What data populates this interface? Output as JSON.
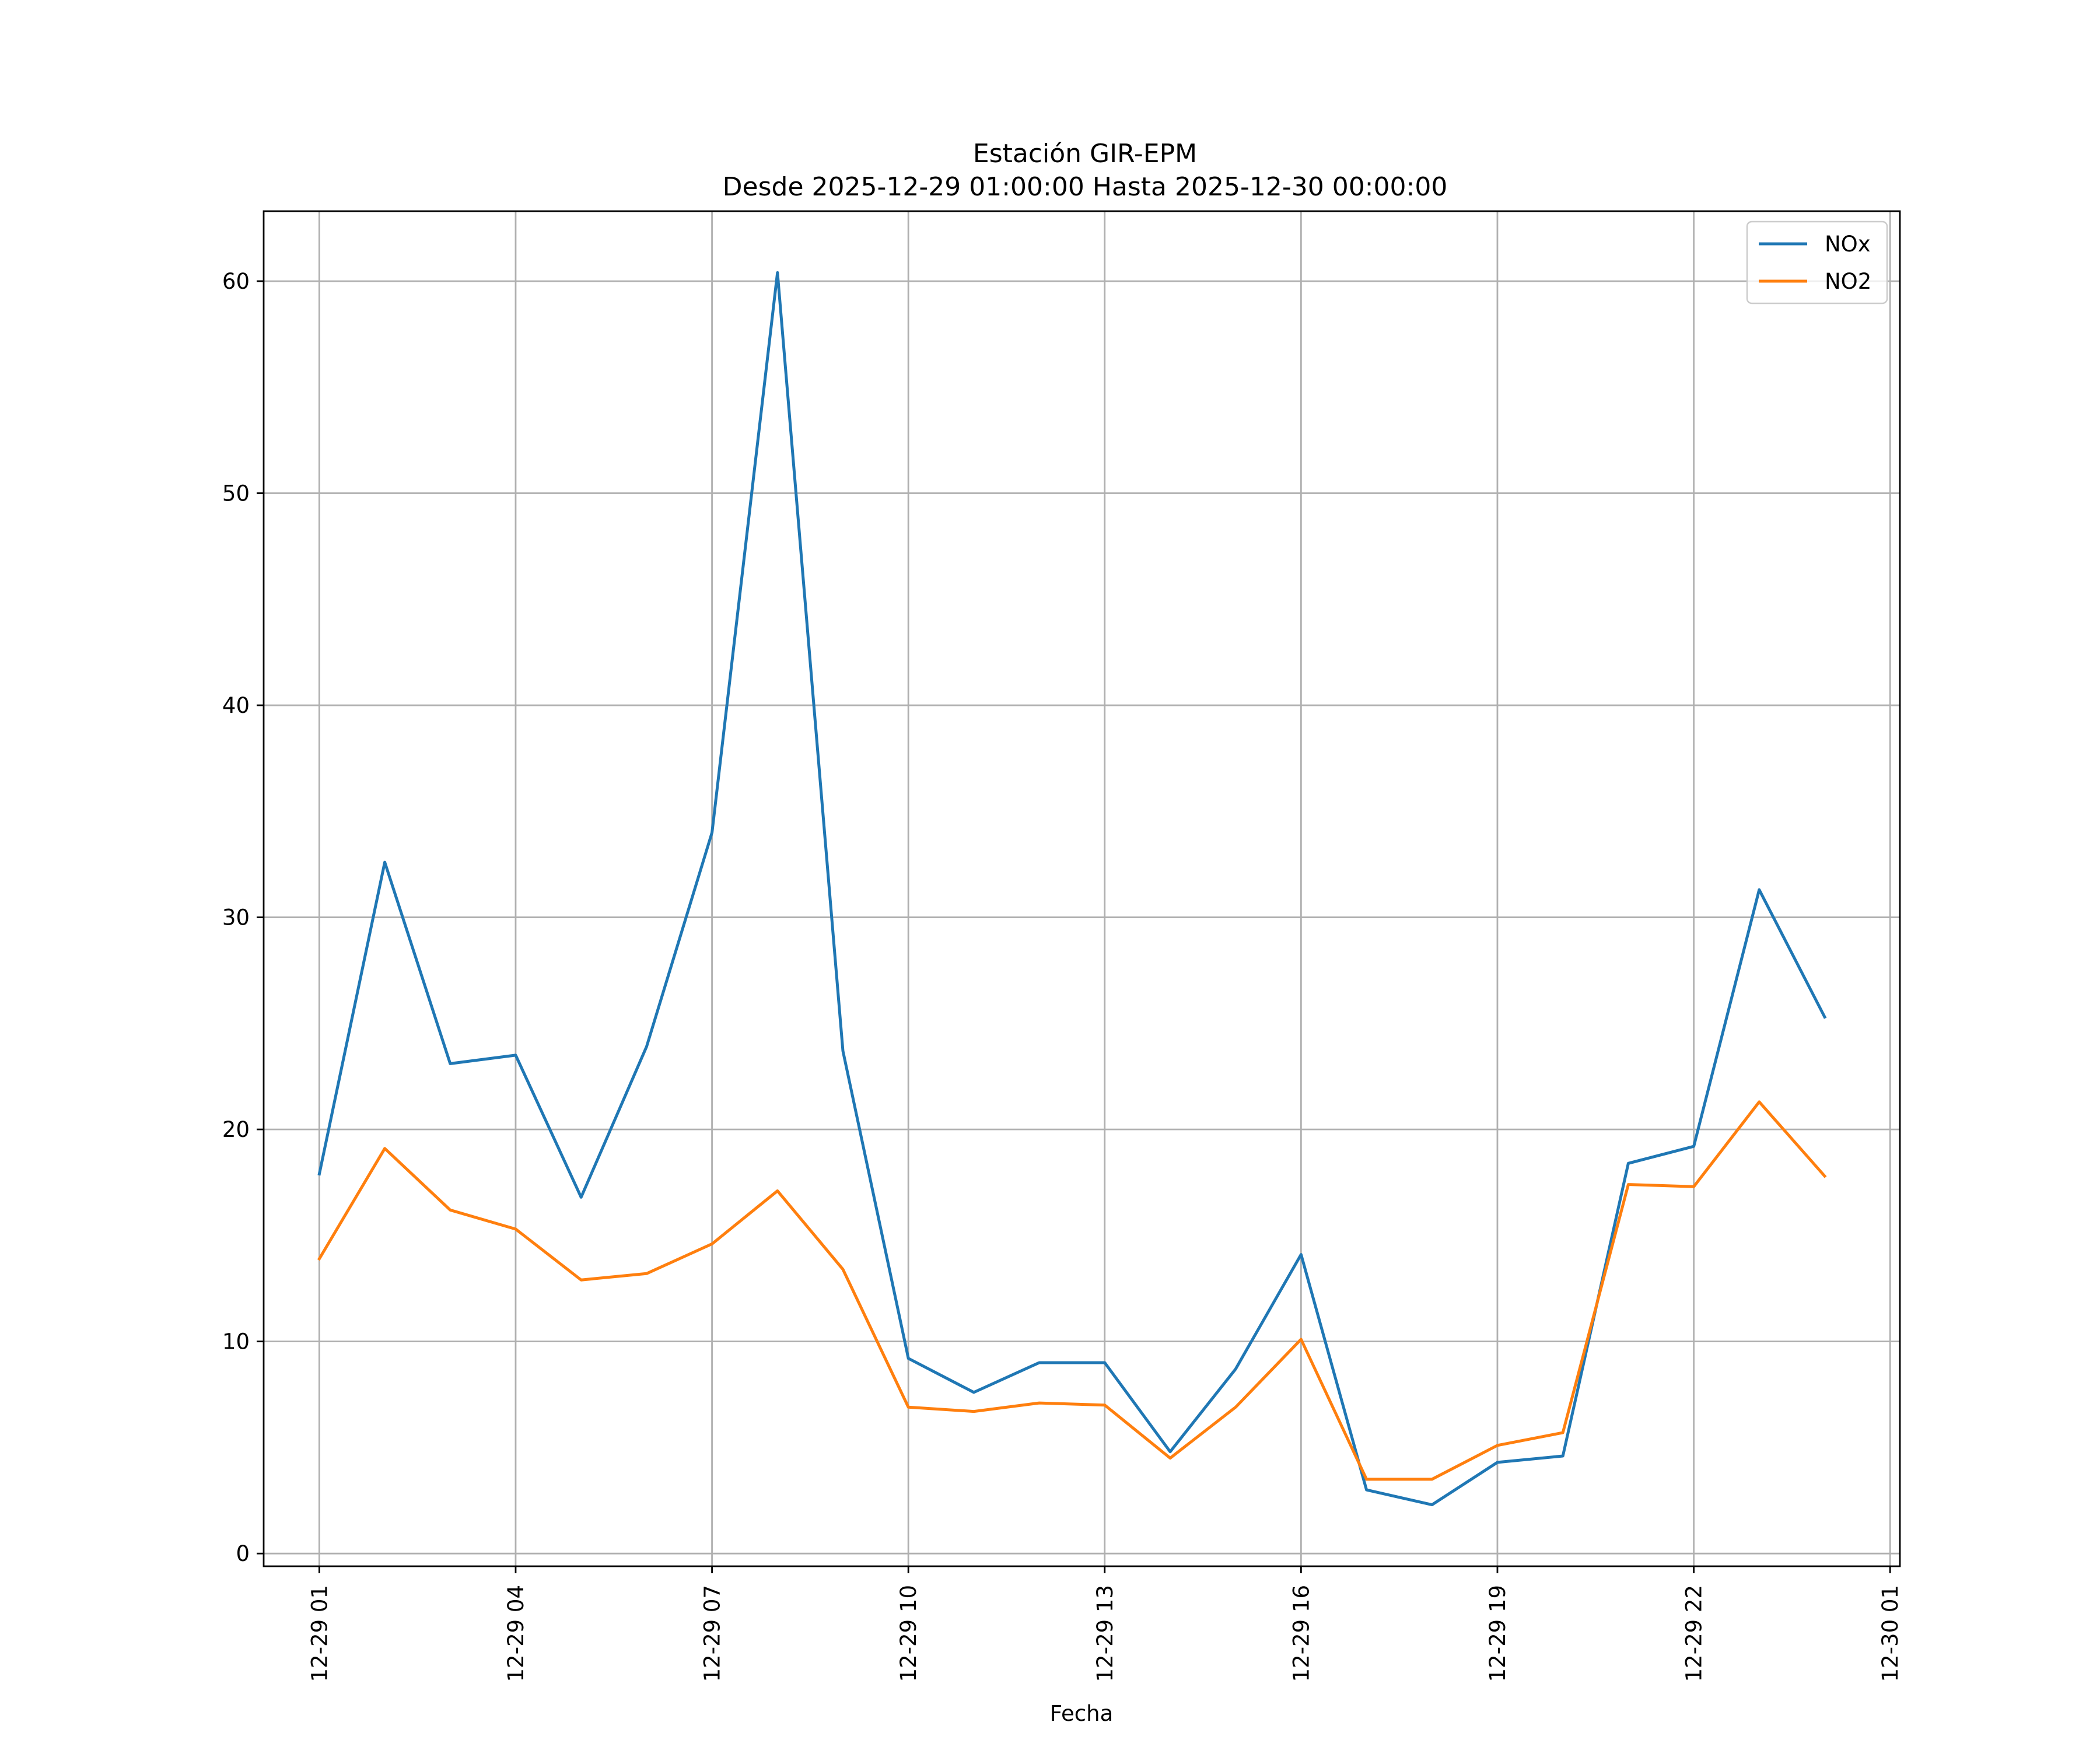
{
  "chart_data": {
    "type": "line",
    "title": "Estación GIR-EPM",
    "subtitle": "Desde 2025-12-29 01:00:00 Hasta 2025-12-30 00:00:00",
    "xlabel": "Fecha",
    "ylabel": "",
    "grid": true,
    "legend_position": "top-right",
    "x_hours": [
      1,
      2,
      3,
      4,
      5,
      6,
      7,
      8,
      9,
      10,
      11,
      12,
      13,
      14,
      15,
      16,
      17,
      18,
      19,
      20,
      21,
      22,
      23,
      24
    ],
    "xlim": [
      0.15,
      25.15
    ],
    "ylim": [
      -0.6,
      63.3
    ],
    "x_ticks": [
      {
        "hour": 1,
        "label": "12-29 01"
      },
      {
        "hour": 4,
        "label": "12-29 04"
      },
      {
        "hour": 7,
        "label": "12-29 07"
      },
      {
        "hour": 10,
        "label": "12-29 10"
      },
      {
        "hour": 13,
        "label": "12-29 13"
      },
      {
        "hour": 16,
        "label": "12-29 16"
      },
      {
        "hour": 19,
        "label": "12-29 19"
      },
      {
        "hour": 22,
        "label": "12-29 22"
      },
      {
        "hour": 25,
        "label": "12-30 01"
      }
    ],
    "y_ticks": [
      0,
      10,
      20,
      30,
      40,
      50,
      60
    ],
    "series": [
      {
        "name": "NOx",
        "color": "#1f77b4",
        "values": [
          17.9,
          32.6,
          23.1,
          23.5,
          16.8,
          23.9,
          34.0,
          60.4,
          23.7,
          9.2,
          7.6,
          9.0,
          9.0,
          4.8,
          8.7,
          14.1,
          3.0,
          2.3,
          4.3,
          4.6,
          18.4,
          19.2,
          31.3,
          25.3
        ]
      },
      {
        "name": "NO2",
        "color": "#ff7f0e",
        "values": [
          13.9,
          19.1,
          16.2,
          15.3,
          12.9,
          13.2,
          14.6,
          17.1,
          13.4,
          6.9,
          6.7,
          7.1,
          7.0,
          4.5,
          6.9,
          10.1,
          3.5,
          3.5,
          5.1,
          5.7,
          17.4,
          17.3,
          21.3,
          17.8
        ]
      }
    ]
  }
}
